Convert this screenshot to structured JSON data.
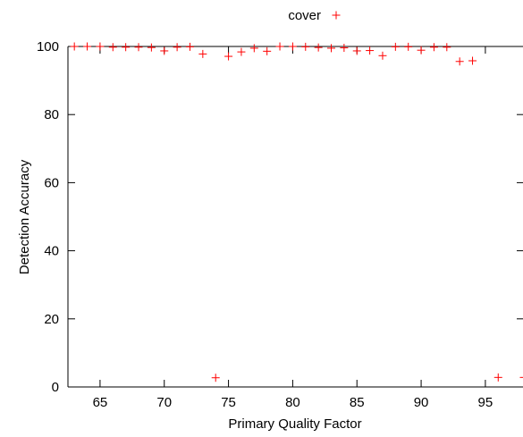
{
  "chart_data": {
    "type": "scatter",
    "xlabel": "Primary Quality Factor",
    "ylabel": "Detection Accuracy",
    "xlim": [
      62.5,
      98
    ],
    "ylim": [
      0,
      100
    ],
    "x_ticks": [
      65,
      70,
      75,
      80,
      85,
      90,
      95
    ],
    "y_ticks": [
      0,
      20,
      40,
      60,
      80,
      100
    ],
    "grid": false,
    "legend_position": "top-center",
    "series": [
      {
        "name": "cover",
        "color": "#ff0000",
        "marker": "plus",
        "x": [
          63,
          64,
          65,
          66,
          67,
          68,
          69,
          70,
          71,
          72,
          73,
          74,
          75,
          76,
          77,
          78,
          79,
          80,
          81,
          82,
          83,
          84,
          85,
          86,
          87,
          88,
          89,
          90,
          91,
          92,
          93,
          94,
          96,
          98
        ],
        "y": [
          100,
          100,
          100,
          99.8,
          99.8,
          99.8,
          99.7,
          98.7,
          99.8,
          99.9,
          97.8,
          2.7,
          97.1,
          98.4,
          99.5,
          98.6,
          100,
          100,
          99.9,
          99.7,
          99.5,
          99.6,
          98.7,
          98.8,
          97.3,
          99.9,
          99.9,
          98.9,
          99.8,
          99.8,
          95.6,
          95.8,
          2.8,
          2.8
        ]
      }
    ]
  }
}
